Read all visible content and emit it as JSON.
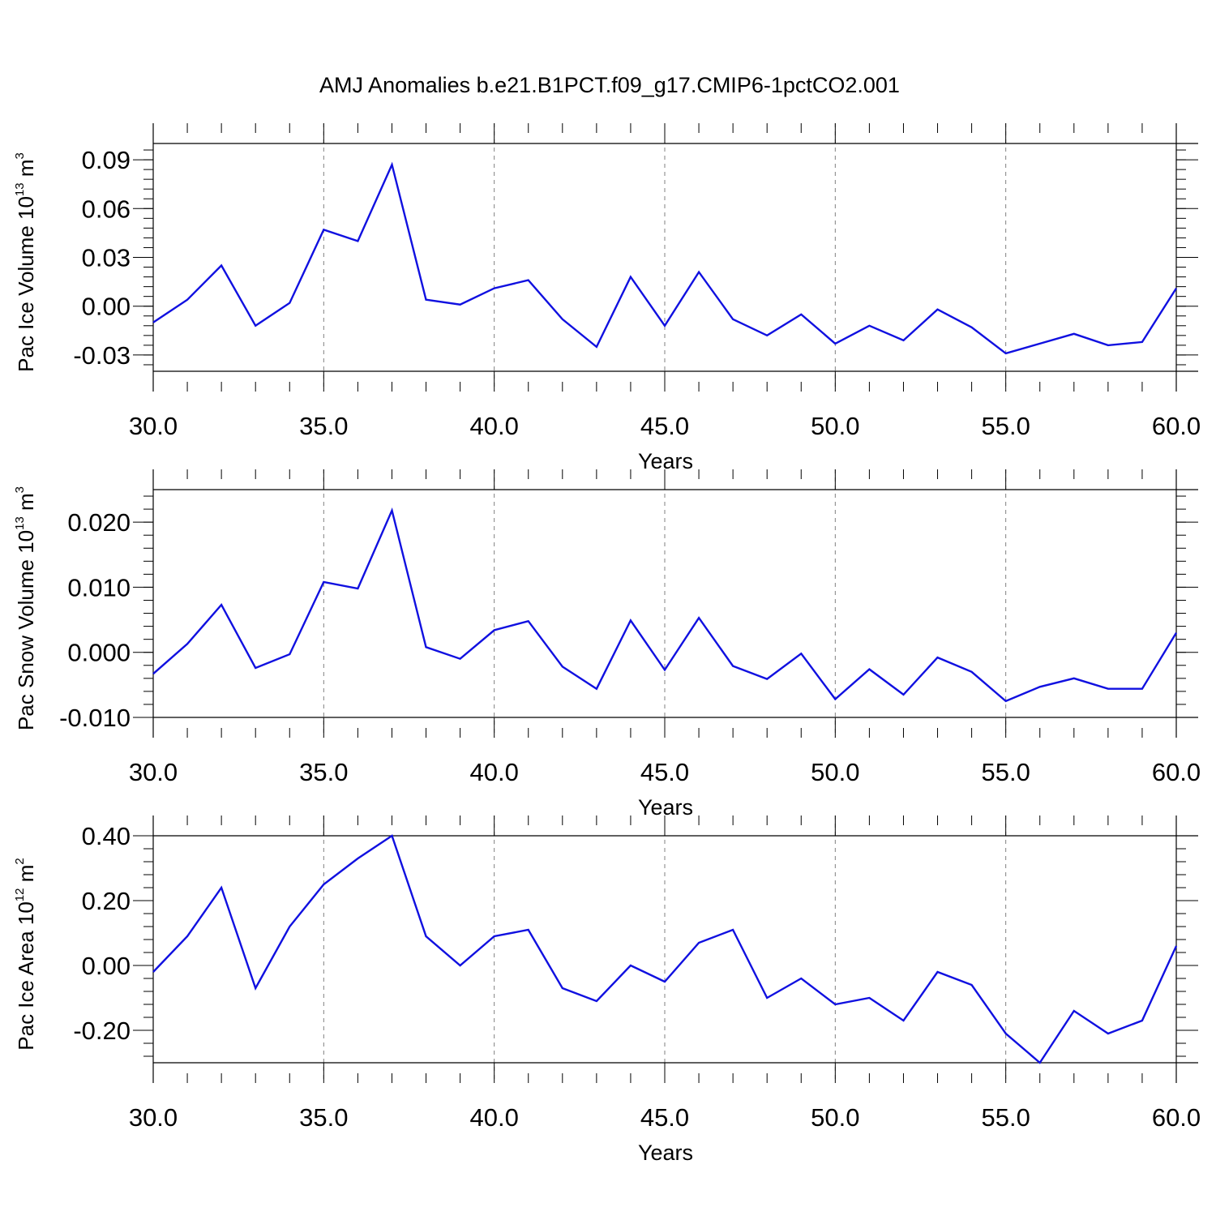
{
  "figure": {
    "title": "AMJ Anomalies b.e21.B1PCT.f09_g17.CMIP6-1pctCO2.001"
  },
  "colors": {
    "line": "#1010e0",
    "axis": "#000000",
    "grid": "#808080"
  },
  "chart_data": [
    {
      "type": "line",
      "title": "",
      "xlabel": "Years",
      "ylabel": {
        "prefix": "Pac Ice Volume 10",
        "exp": "13",
        "unit": " m",
        "unit_exp": "3"
      },
      "xlim": [
        30,
        60
      ],
      "ylim": [
        -0.04,
        0.1
      ],
      "xticks": [
        30,
        35,
        40,
        45,
        50,
        55,
        60
      ],
      "xtick_labels": [
        "30.0",
        "35.0",
        "40.0",
        "45.0",
        "50.0",
        "55.0",
        "60.0"
      ],
      "yticks": [
        -0.03,
        0,
        0.03,
        0.06,
        0.09
      ],
      "ytick_labels": [
        "-0.03",
        "0.00",
        "0.03",
        "0.06",
        "0.09"
      ],
      "yminor_step": 0.006,
      "grid": "vertical dashed at major x ticks",
      "x": [
        30,
        31,
        32,
        33,
        34,
        35,
        36,
        37,
        38,
        39,
        40,
        41,
        42,
        43,
        44,
        45,
        46,
        47,
        48,
        49,
        50,
        51,
        52,
        53,
        54,
        55,
        56,
        57,
        58,
        59,
        60
      ],
      "y": [
        -0.01,
        0.004,
        0.025,
        -0.012,
        0.002,
        0.047,
        0.04,
        0.087,
        0.004,
        0.001,
        0.011,
        0.016,
        -0.008,
        -0.025,
        0.018,
        -0.012,
        0.021,
        -0.008,
        -0.018,
        -0.005,
        -0.023,
        -0.012,
        -0.021,
        -0.002,
        -0.013,
        -0.029,
        -0.023,
        -0.017,
        -0.024,
        -0.022,
        0.011
      ]
    },
    {
      "type": "line",
      "title": "",
      "xlabel": "Years",
      "ylabel": {
        "prefix": "Pac Snow Volume 10",
        "exp": "13",
        "unit": " m",
        "unit_exp": "3"
      },
      "xlim": [
        30,
        60
      ],
      "ylim": [
        -0.01,
        0.025
      ],
      "xticks": [
        30,
        35,
        40,
        45,
        50,
        55,
        60
      ],
      "xtick_labels": [
        "30.0",
        "35.0",
        "40.0",
        "45.0",
        "50.0",
        "55.0",
        "60.0"
      ],
      "yticks": [
        -0.01,
        0,
        0.01,
        0.02
      ],
      "ytick_labels": [
        "-0.010",
        "0.000",
        "0.010",
        "0.020"
      ],
      "yminor_step": 0.002,
      "grid": "vertical dashed at major x ticks",
      "x": [
        30,
        31,
        32,
        33,
        34,
        35,
        36,
        37,
        38,
        39,
        40,
        41,
        42,
        43,
        44,
        45,
        46,
        47,
        48,
        49,
        50,
        51,
        52,
        53,
        54,
        55,
        56,
        57,
        58,
        59,
        60
      ],
      "y": [
        -0.0033,
        0.0013,
        0.0073,
        -0.0024,
        -0.0003,
        0.0108,
        0.0098,
        0.0218,
        0.0008,
        -0.001,
        0.0034,
        0.0048,
        -0.0022,
        -0.0056,
        0.0049,
        -0.0027,
        0.0053,
        -0.0021,
        -0.0041,
        -0.0002,
        -0.0072,
        -0.0026,
        -0.0065,
        -0.0008,
        -0.003,
        -0.0075,
        -0.0053,
        -0.004,
        -0.0056,
        -0.0056,
        0.003
      ]
    },
    {
      "type": "line",
      "title": "",
      "xlabel": "Years",
      "ylabel": {
        "prefix": "Pac Ice Area 10",
        "exp": "12",
        "unit": " m",
        "unit_exp": "2"
      },
      "xlim": [
        30,
        60
      ],
      "ylim": [
        -0.3,
        0.4
      ],
      "xticks": [
        30,
        35,
        40,
        45,
        50,
        55,
        60
      ],
      "xtick_labels": [
        "30.0",
        "35.0",
        "40.0",
        "45.0",
        "50.0",
        "55.0",
        "60.0"
      ],
      "yticks": [
        -0.2,
        0,
        0.2,
        0.4
      ],
      "ytick_labels": [
        "-0.20",
        "0.00",
        "0.20",
        "0.40"
      ],
      "yminor_step": 0.04,
      "grid": "vertical dashed at major x ticks",
      "x": [
        30,
        31,
        32,
        33,
        34,
        35,
        36,
        37,
        38,
        39,
        40,
        41,
        42,
        43,
        44,
        45,
        46,
        47,
        48,
        49,
        50,
        51,
        52,
        53,
        54,
        55,
        56,
        57,
        58,
        59,
        60
      ],
      "y": [
        -0.02,
        0.09,
        0.24,
        -0.07,
        0.12,
        0.25,
        0.33,
        0.4,
        0.09,
        0.0,
        0.09,
        0.11,
        -0.07,
        -0.11,
        0.0,
        -0.05,
        0.07,
        0.11,
        -0.1,
        -0.04,
        -0.12,
        -0.1,
        -0.17,
        -0.02,
        -0.06,
        -0.21,
        -0.3,
        -0.14,
        -0.21,
        -0.17,
        0.06
      ]
    }
  ]
}
